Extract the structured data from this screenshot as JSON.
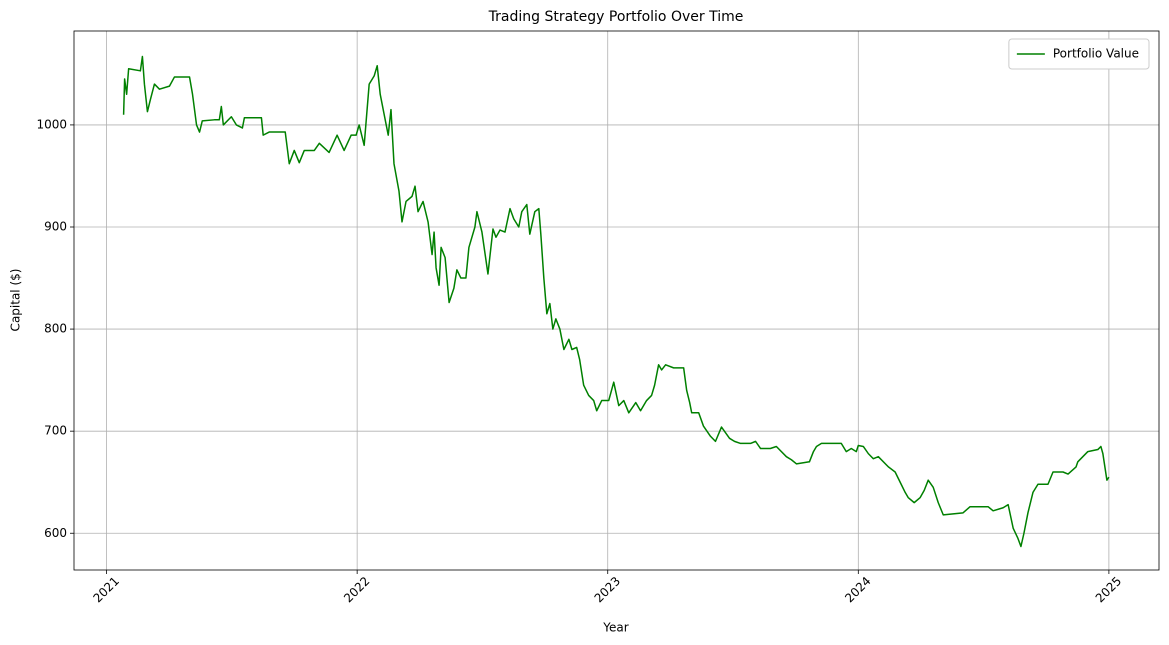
{
  "chart_data": {
    "type": "line",
    "title": "Trading Strategy Portfolio Over Time",
    "x_label": "Year",
    "y_label": "Capital ($)",
    "xlim": [
      2020.87,
      2025.2
    ],
    "xticks": [
      2021,
      2022,
      2023,
      2024,
      2025
    ],
    "ylim": [
      564,
      1092
    ],
    "yticks": [
      600,
      700,
      800,
      900,
      1000
    ],
    "grid": true,
    "legend": "upper right",
    "x": [
      2021.068,
      2021.072,
      2021.08,
      2021.088,
      2021.135,
      2021.143,
      2021.151,
      2021.163,
      2021.175,
      2021.191,
      2021.211,
      2021.251,
      2021.271,
      2021.331,
      2021.343,
      2021.359,
      2021.371,
      2021.382,
      2021.43,
      2021.45,
      2021.458,
      2021.466,
      2021.498,
      2021.518,
      2021.542,
      2021.55,
      2021.618,
      2021.625,
      2021.649,
      2021.713,
      2021.729,
      2021.749,
      2021.769,
      2021.789,
      2021.829,
      2021.849,
      2021.888,
      2021.92,
      2021.948,
      2021.976,
      2021.996,
      2022.008,
      2022.028,
      2022.048,
      2022.068,
      2022.08,
      2022.092,
      2022.108,
      2022.124,
      2022.135,
      2022.147,
      2022.167,
      2022.179,
      2022.195,
      2022.219,
      2022.231,
      2022.243,
      2022.263,
      2022.283,
      2022.299,
      2022.307,
      2022.315,
      2022.327,
      2022.335,
      2022.351,
      2022.367,
      2022.386,
      2022.398,
      2022.414,
      2022.434,
      2022.446,
      2022.458,
      2022.47,
      2022.478,
      2022.498,
      2022.522,
      2022.542,
      2022.554,
      2022.57,
      2022.59,
      2022.61,
      2022.625,
      2022.645,
      2022.657,
      2022.677,
      2022.689,
      2022.709,
      2022.725,
      2022.733,
      2022.745,
      2022.757,
      2022.769,
      2022.781,
      2022.793,
      2022.809,
      2022.825,
      2022.845,
      2022.857,
      2022.876,
      2022.888,
      2022.904,
      2022.924,
      2022.944,
      2022.956,
      2022.976,
      2023.004,
      2023.024,
      2023.044,
      2023.064,
      2023.084,
      2023.112,
      2023.131,
      2023.155,
      2023.175,
      2023.187,
      2023.203,
      2023.215,
      2023.231,
      2023.263,
      2023.303,
      2023.315,
      2023.327,
      2023.335,
      2023.363,
      2023.382,
      2023.41,
      2023.43,
      2023.454,
      2023.486,
      2023.506,
      2023.53,
      2023.57,
      2023.59,
      2023.61,
      2023.649,
      2023.673,
      2023.713,
      2023.733,
      2023.753,
      2023.805,
      2023.821,
      2023.833,
      2023.853,
      2023.932,
      2023.952,
      2023.972,
      2023.992,
      2024.0,
      2024.02,
      2024.04,
      2024.06,
      2024.08,
      2024.12,
      2024.147,
      2024.171,
      2024.187,
      2024.199,
      2024.223,
      2024.247,
      2024.263,
      2024.279,
      2024.299,
      2024.319,
      2024.339,
      2024.418,
      2024.446,
      2024.518,
      2024.538,
      2024.578,
      2024.598,
      2024.618,
      2024.637,
      2024.649,
      2024.661,
      2024.677,
      2024.697,
      2024.717,
      2024.757,
      2024.777,
      2024.817,
      2024.837,
      2024.869,
      2024.876,
      2024.916,
      2024.956,
      2024.968,
      2024.976,
      2024.984,
      2024.992,
      2025.0
    ],
    "series": [
      {
        "name": "Portfolio Value",
        "color": "#008000",
        "values": [
          1010,
          1045,
          1030,
          1055,
          1053,
          1067,
          1040,
          1013,
          1025,
          1040,
          1035,
          1038,
          1047,
          1047,
          1030,
          1000,
          993,
          1004,
          1005,
          1005,
          1018,
          1000,
          1008,
          1000,
          997,
          1007,
          1007,
          990,
          993,
          993,
          962,
          975,
          963,
          975,
          975,
          982,
          973,
          990,
          975,
          990,
          990,
          1000,
          980,
          1040,
          1048,
          1058,
          1030,
          1010,
          990,
          1015,
          962,
          935,
          905,
          925,
          930,
          940,
          915,
          925,
          905,
          873,
          895,
          860,
          843,
          880,
          870,
          826,
          840,
          858,
          850,
          850,
          880,
          890,
          900,
          915,
          895,
          854,
          898,
          890,
          897,
          895,
          918,
          908,
          900,
          915,
          922,
          893,
          915,
          918,
          893,
          850,
          815,
          825,
          800,
          810,
          800,
          780,
          790,
          780,
          782,
          770,
          745,
          735,
          730,
          720,
          730,
          730,
          748,
          725,
          730,
          718,
          728,
          720,
          730,
          735,
          745,
          765,
          760,
          765,
          762,
          762,
          740,
          728,
          718,
          718,
          705,
          695,
          690,
          704,
          693,
          690,
          688,
          688,
          690,
          683,
          683,
          685,
          675,
          672,
          668,
          670,
          680,
          685,
          688,
          688,
          680,
          683,
          680,
          686,
          685,
          678,
          673,
          675,
          665,
          660,
          648,
          640,
          635,
          630,
          635,
          642,
          652,
          645,
          630,
          618,
          620,
          626,
          626,
          622,
          625,
          628,
          605,
          595,
          587,
          600,
          620,
          640,
          648,
          648,
          660,
          660,
          658,
          665,
          670,
          680,
          682,
          685,
          678,
          665,
          652,
          655
        ]
      }
    ]
  }
}
